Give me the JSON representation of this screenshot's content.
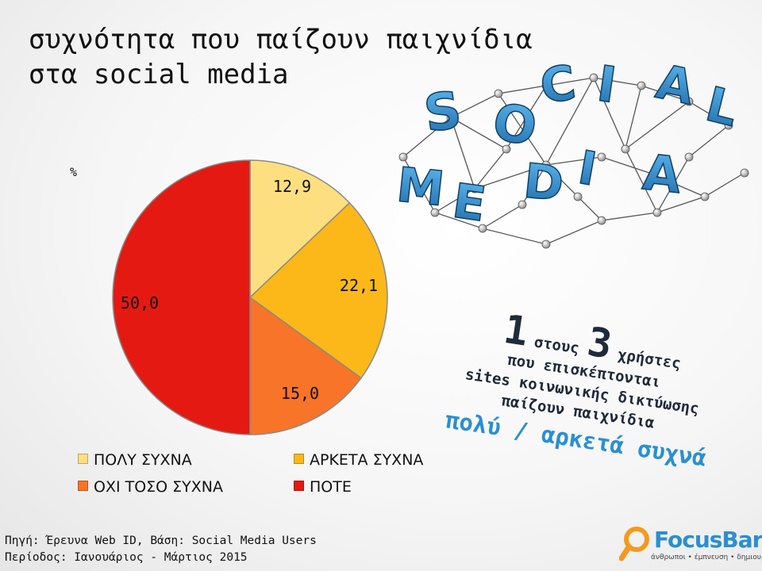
{
  "title": {
    "line1": "συχνότητα που παίζουν παιχνίδια",
    "line2": "στα social media"
  },
  "unit": "%",
  "chart_data": {
    "type": "pie",
    "categories": [
      "ΠΟΛΥ ΣΥΧΝΑ",
      "ΑΡΚΕΤΑ ΣΥΧΝΑ",
      "ΟΧΙ ΤΟΣΟ ΣΥΧΝΑ",
      "ΠΟΤΕ"
    ],
    "values": [
      12.9,
      22.1,
      15.0,
      50.0
    ],
    "labels": [
      "12,9",
      "22,1",
      "15,0",
      "50,0"
    ],
    "colors": [
      "#fedf7f",
      "#fbb818",
      "#f87428",
      "#e41a12"
    ],
    "legend_position": "bottom"
  },
  "legend": [
    {
      "label": "ΠΟΛΥ ΣΥΧΝΑ",
      "color": "#fedf7f"
    },
    {
      "label": "ΑΡΚΕΤΑ ΣΥΧΝΑ",
      "color": "#fbb818"
    },
    {
      "label": "ΟΧΙ ΤΟΣΟ ΣΥΧΝΑ",
      "color": "#f87428"
    },
    {
      "label": "ΠΟΤΕ",
      "color": "#e41a12"
    }
  ],
  "callout": {
    "num1": "1",
    "word1": "στους",
    "num2": "3",
    "word2": "χρήστες",
    "line2": "που επισκέπτονται",
    "line3": "sites κοινωνικής δικτύωσης",
    "line4": "παίζουν παιχνίδια",
    "line5": "πολύ / αρκετά συχνά"
  },
  "graphic": {
    "letters": [
      "S",
      "O",
      "C",
      "I",
      "A",
      "L",
      "M",
      "E",
      "D",
      "I",
      "A"
    ]
  },
  "source": {
    "line1": "Πηγή: Έρευνα Web ID, Βάση: Social Media Users",
    "line2": "Περίοδος: Ιανουάριος - Μάρτιος 2015"
  },
  "logo": {
    "name": "FocusBari",
    "tagline": "άνθρωποι • έμπνευση • δημιουργία"
  }
}
